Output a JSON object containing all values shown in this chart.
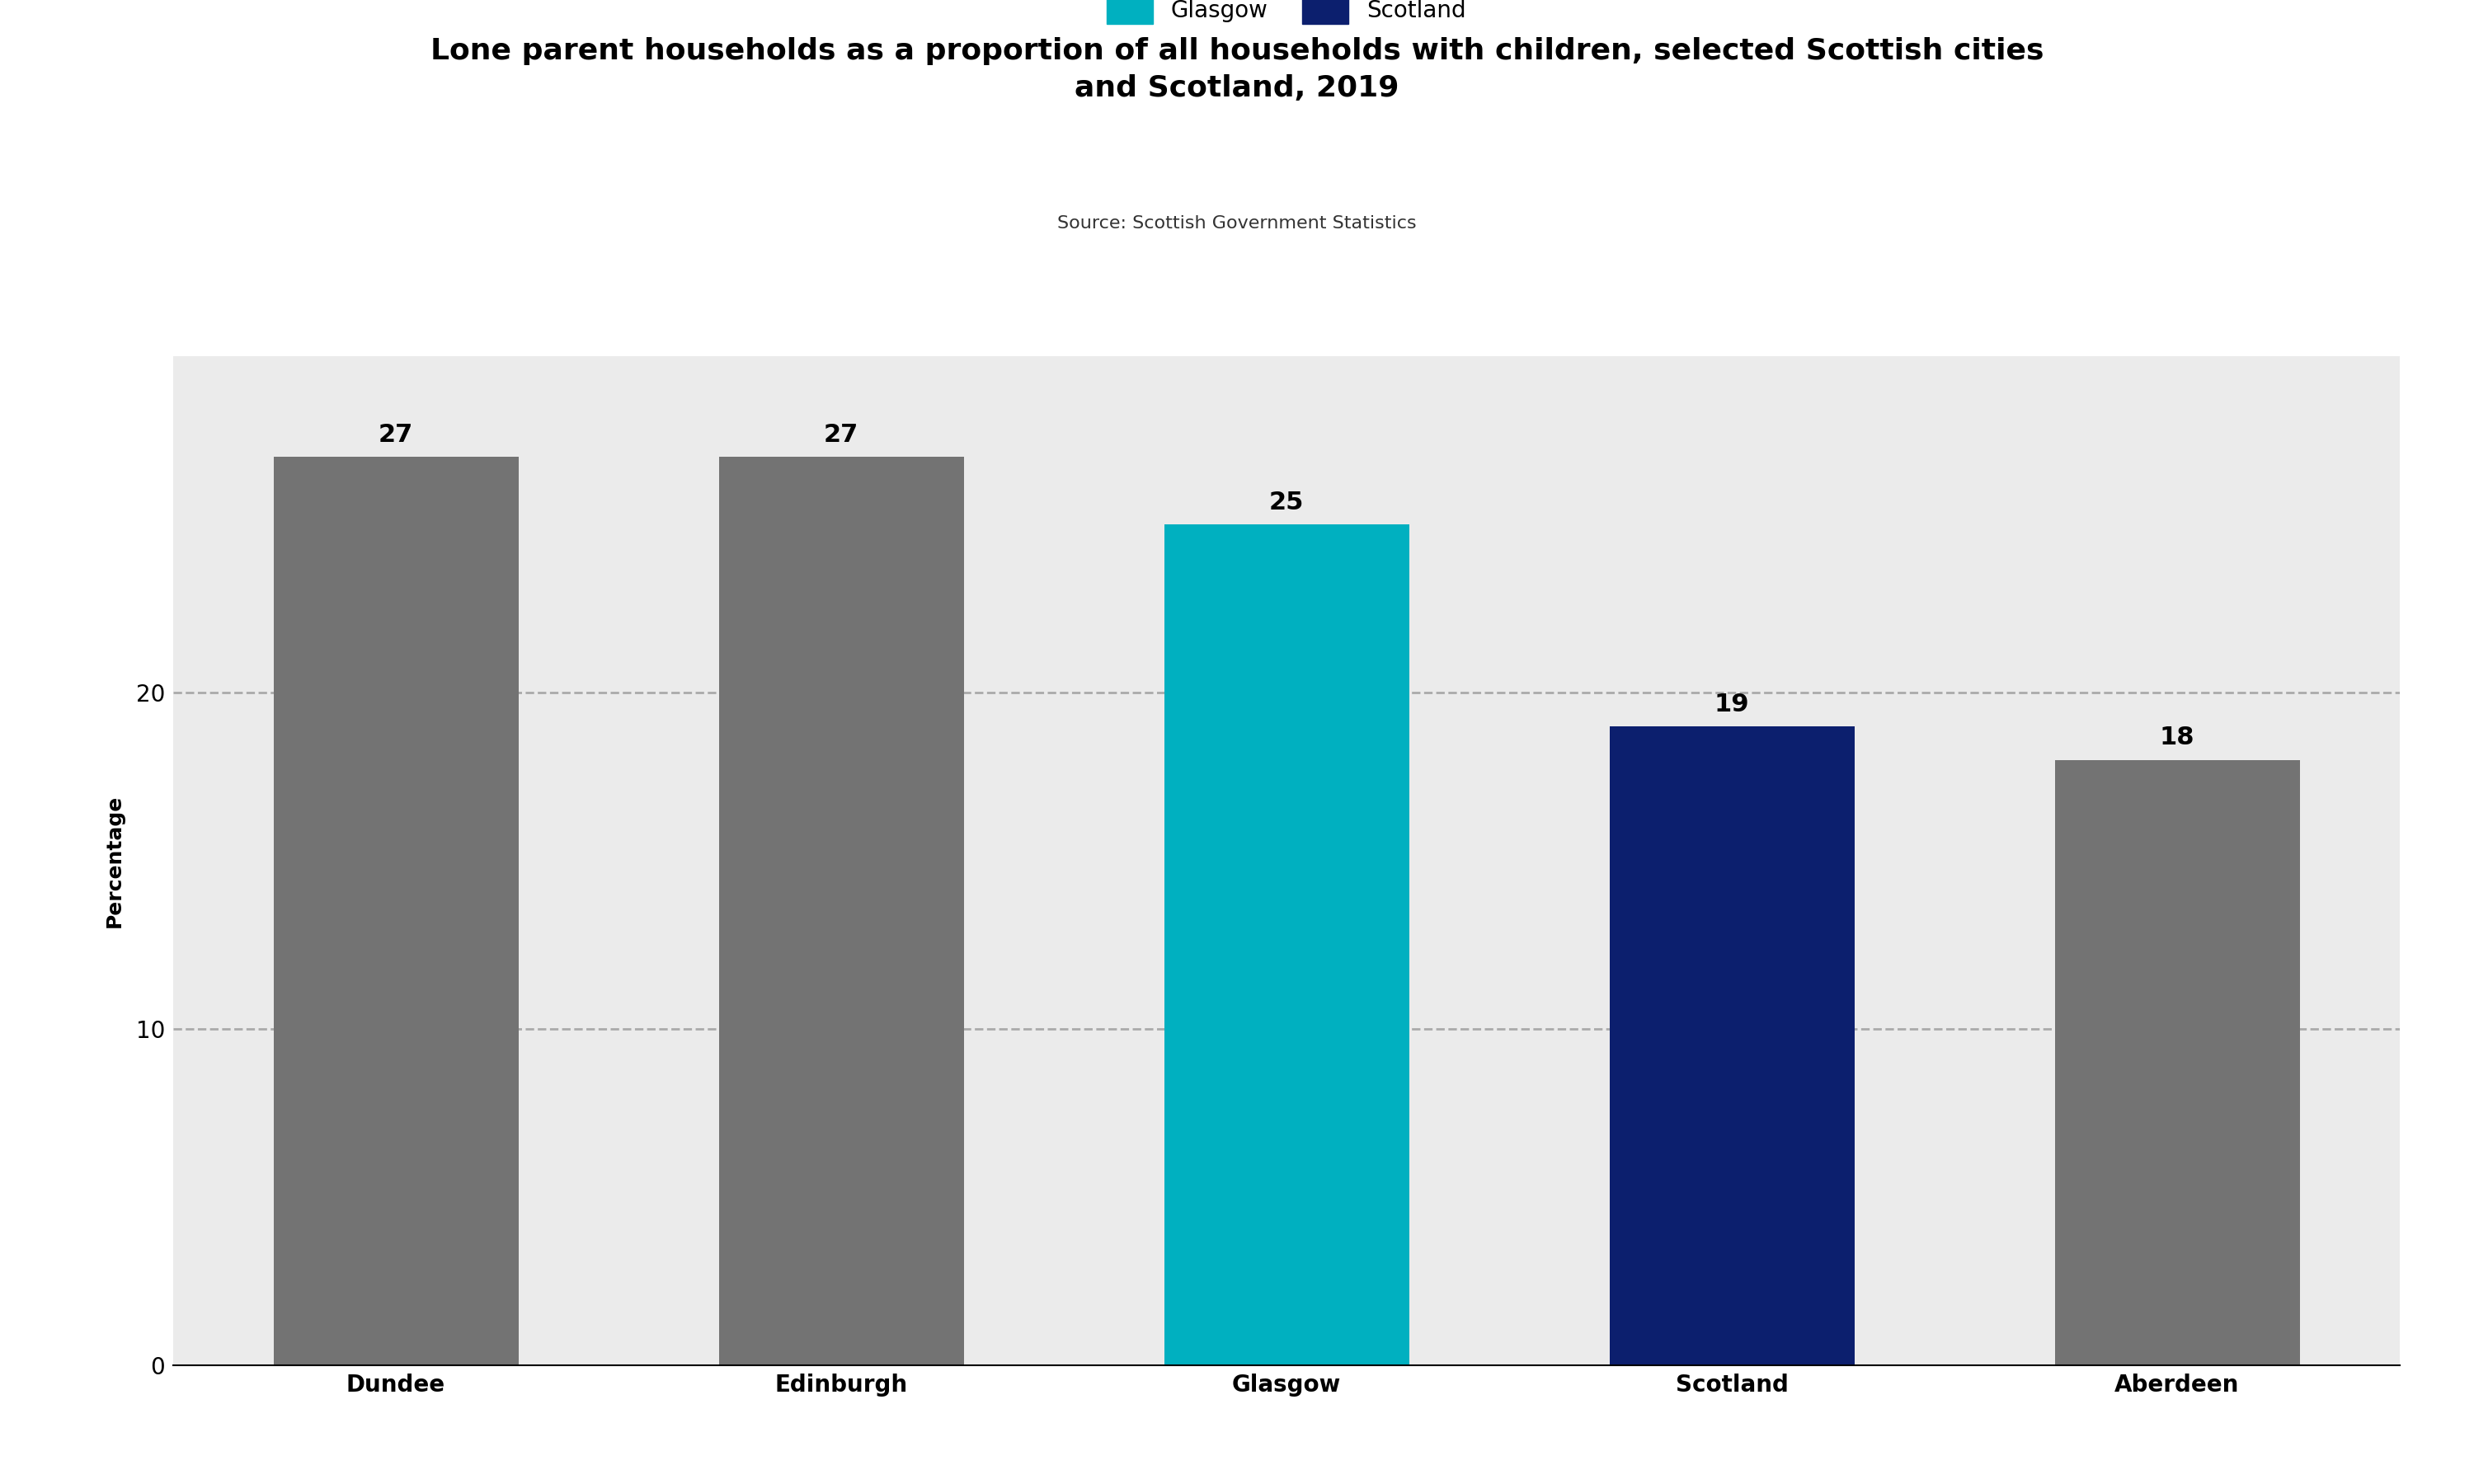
{
  "title": "Lone parent households as a proportion of all households with children, selected Scottish cities\nand Scotland, 2019",
  "source": "Source: Scottish Government Statistics",
  "categories": [
    "Dundee",
    "Edinburgh",
    "Glasgow",
    "Scotland",
    "Aberdeen"
  ],
  "values": [
    27,
    27,
    25,
    19,
    18
  ],
  "bar_colors": [
    "#737373",
    "#737373",
    "#00B0C0",
    "#0C1F6E",
    "#737373"
  ],
  "ylabel": "Percentage",
  "ylim": [
    0,
    30
  ],
  "yticks": [
    0,
    10,
    20
  ],
  "grid_color": "#aaaaaa",
  "plot_bg": "#ebebeb",
  "legend": [
    {
      "label": "Glasgow",
      "color": "#00B0C0"
    },
    {
      "label": "Scotland",
      "color": "#0C1F6E"
    }
  ],
  "title_fontsize": 26,
  "source_fontsize": 16,
  "label_fontsize": 22,
  "tick_fontsize": 20,
  "ylabel_fontsize": 18,
  "bar_width": 0.55
}
